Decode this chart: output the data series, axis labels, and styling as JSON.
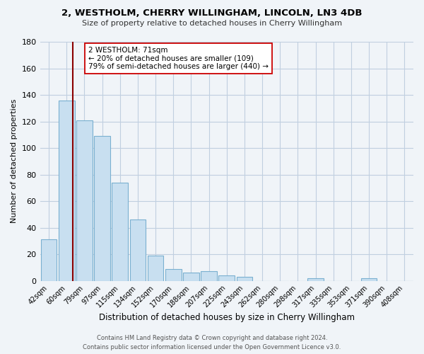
{
  "title": "2, WESTHOLM, CHERRY WILLINGHAM, LINCOLN, LN3 4DB",
  "subtitle": "Size of property relative to detached houses in Cherry Willingham",
  "xlabel": "Distribution of detached houses by size in Cherry Willingham",
  "ylabel": "Number of detached properties",
  "bar_labels": [
    "42sqm",
    "60sqm",
    "79sqm",
    "97sqm",
    "115sqm",
    "134sqm",
    "152sqm",
    "170sqm",
    "188sqm",
    "207sqm",
    "225sqm",
    "243sqm",
    "262sqm",
    "280sqm",
    "298sqm",
    "317sqm",
    "335sqm",
    "353sqm",
    "371sqm",
    "390sqm",
    "408sqm"
  ],
  "bar_values": [
    31,
    136,
    121,
    109,
    74,
    46,
    19,
    9,
    6,
    7,
    4,
    3,
    0,
    0,
    0,
    2,
    0,
    0,
    2,
    0,
    0
  ],
  "bar_color": "#c8dff0",
  "bar_edge_color": "#7ab0d0",
  "property_line_x": 1.35,
  "property_line_color": "#8b0000",
  "ylim": [
    0,
    180
  ],
  "yticks": [
    0,
    20,
    40,
    60,
    80,
    100,
    120,
    140,
    160,
    180
  ],
  "annotation_title": "2 WESTHOLM: 71sqm",
  "annotation_line1": "← 20% of detached houses are smaller (109)",
  "annotation_line2": "79% of semi-detached houses are larger (440) →",
  "footer_line1": "Contains HM Land Registry data © Crown copyright and database right 2024.",
  "footer_line2": "Contains public sector information licensed under the Open Government Licence v3.0.",
  "background_color": "#f0f4f8",
  "grid_color": "#c0cfe0"
}
